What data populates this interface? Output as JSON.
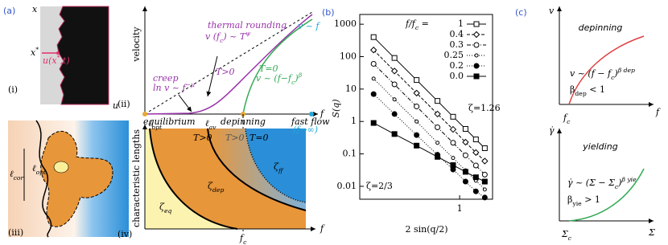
{
  "panel_a": {
    "label": "(a)",
    "i": {
      "label": "(i)",
      "x_axis": "x",
      "u_axis": "u",
      "x_star": [
        "x",
        {
          "sup": "*"
        }
      ],
      "u_label": [
        "u(x",
        {
          "sup": "*"
        },
        ",t)"
      ]
    },
    "ii": {
      "label": "(ii)",
      "ylabel": "velocity",
      "thermal": "thermal rounding",
      "thermal_eq": [
        "v (f",
        {
          "sub": "c"
        },
        ") ~ T",
        {
          "sup": "ψ"
        }
      ],
      "creep": "creep",
      "creep_eq": [
        "ln v ~ f",
        {
          "sup": "−μ"
        }
      ],
      "linear": "v ~ f",
      "t_pos": "T>0",
      "t_zero": "T=0",
      "dep_eq": [
        "v ~ (f−f",
        {
          "sub": "c"
        },
        ")",
        {
          "sup": "β"
        }
      ],
      "equilibrium": "equilibrium",
      "depinning": "depinning",
      "fast_flow": "fast flow",
      "fast_flow_limit": "(f→∞)",
      "f": "f"
    },
    "iii": {
      "label": "(iii)",
      "l_cor": [
        "ℓ",
        {
          "sub": "cor"
        }
      ],
      "l_opt": [
        "ℓ",
        {
          "sub": "opt"
        }
      ]
    },
    "iv": {
      "label": "(iv)",
      "ylabel": "characteristic lengths",
      "l_opt": [
        "ℓ",
        {
          "sub": "opt"
        }
      ],
      "l_av": [
        "ℓ",
        {
          "sub": "av"
        }
      ],
      "t_pos_1": "T>0",
      "t_pos_2": "T>0",
      "t_zero": "T=0",
      "zeta_eq": [
        "ζ",
        {
          "sub": "eq"
        }
      ],
      "zeta_dep": [
        "ζ",
        {
          "sub": "dep"
        }
      ],
      "zeta_ff": [
        "ζ",
        {
          "sub": "ff"
        }
      ],
      "fc": [
        "f",
        {
          "sub": "c"
        }
      ],
      "f": "f"
    }
  },
  "chart_data": {
    "type": "line",
    "panel_label": "(b)",
    "xlabel": "2 sin(q/2)",
    "ylabel": "S(q)",
    "log_x": true,
    "log_y": true,
    "xlim": [
      0.2,
      1.7
    ],
    "xticks": [
      1
    ],
    "ylim": [
      0.004,
      2000
    ],
    "yticks": [
      0.01,
      0.1,
      1,
      10,
      100,
      1000
    ],
    "legend_title": [
      "f/f",
      {
        "sub": "c"
      },
      " ="
    ],
    "legend": "upper right",
    "x": [
      0.25,
      0.35,
      0.5,
      0.7,
      0.9,
      1.1,
      1.3,
      1.5
    ],
    "series": [
      {
        "name": "1",
        "color": "#000000",
        "marker": "square-open",
        "line_style": "solid",
        "values": [
          400,
          91,
          19,
          4.3,
          1.4,
          0.59,
          0.28,
          0.15
        ]
      },
      {
        "name": "0.4",
        "color": "#000000",
        "marker": "diamond-open",
        "line_style": "dashed",
        "values": [
          160,
          36,
          7.5,
          1.7,
          0.57,
          0.23,
          0.11,
          0.06
        ]
      },
      {
        "name": "0.3",
        "color": "#000000",
        "marker": "circle-open",
        "line_style": "dash-dot",
        "values": [
          60,
          14,
          2.9,
          0.66,
          0.22,
          0.09,
          0.044,
          0.023
        ]
      },
      {
        "name": "0.25",
        "color": "#000000",
        "marker": "circle-open-small",
        "line_style": "dotted",
        "values": [
          21,
          4.8,
          1.0,
          0.22,
          0.075,
          0.031,
          0.015,
          0.008
        ]
      },
      {
        "name": "0.2",
        "color": "#000000",
        "marker": "circle",
        "line_style": "dotted",
        "values": [
          7,
          1.7,
          0.38,
          0.094,
          0.033,
          0.014,
          0.007,
          0.0045
        ]
      },
      {
        "name": "0.0",
        "color": "#000000",
        "marker": "square",
        "line_style": "solid",
        "values": [
          0.9,
          0.41,
          0.18,
          0.081,
          0.045,
          0.028,
          0.019,
          0.014
        ]
      }
    ],
    "annotations": [
      "ζ=1.26",
      "ζ=2/3"
    ]
  },
  "panel_c": {
    "label": "(c)",
    "top": {
      "y_axis": "v",
      "title": "depinning",
      "eq": [
        "v ~ (f − f",
        {
          "sub": "c"
        },
        ")",
        {
          "sup": "β dep"
        }
      ],
      "cond": [
        "β",
        {
          "sub": "dep"
        },
        " < 1"
      ],
      "fc": [
        "f",
        {
          "sub": "c"
        }
      ],
      "x_axis": "f"
    },
    "bottom": {
      "y_axis": "γ̇",
      "title": "yielding",
      "eq": [
        "γ̇ ~ (Σ − Σ",
        {
          "sub": "c"
        },
        ")",
        {
          "sup": "β yie"
        }
      ],
      "cond": [
        "β",
        {
          "sub": "yie"
        },
        " > 1"
      ],
      "sc": [
        "Σ",
        {
          "sub": "c"
        }
      ],
      "x_axis": "Σ"
    }
  }
}
